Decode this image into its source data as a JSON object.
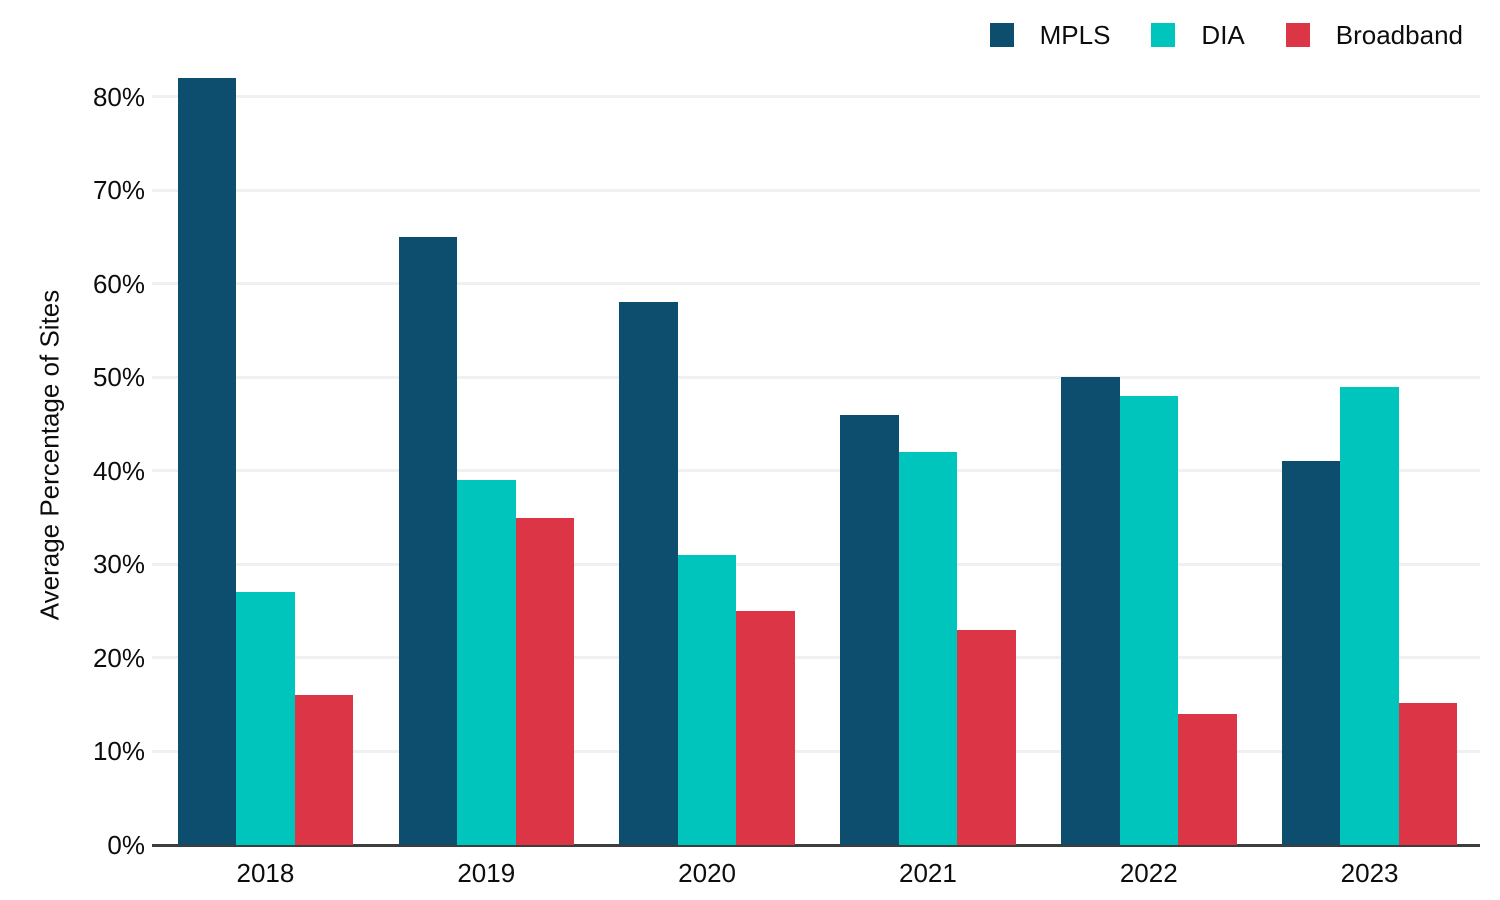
{
  "chart_data": {
    "type": "bar",
    "title": "",
    "categories": [
      "2018",
      "2019",
      "2020",
      "2021",
      "2022",
      "2023"
    ],
    "series": [
      {
        "name": "MPLS",
        "color": "#0d4d6d",
        "values": [
          82,
          65,
          58,
          46,
          50,
          41
        ]
      },
      {
        "name": "DIA",
        "color": "#00c5bc",
        "values": [
          27,
          39,
          31,
          42,
          48,
          49
        ]
      },
      {
        "name": "Broadband",
        "color": "#dc3545",
        "values": [
          16,
          35,
          25,
          23,
          14,
          15.2
        ]
      }
    ],
    "xlabel": "",
    "ylabel": "Average Percentage of Sites",
    "ylim": [
      0,
      85
    ],
    "yticks": [
      {
        "value": 0,
        "label": "0%"
      },
      {
        "value": 10,
        "label": "10%"
      },
      {
        "value": 20,
        "label": "20%"
      },
      {
        "value": 30,
        "label": "30%"
      },
      {
        "value": 40,
        "label": "40%"
      },
      {
        "value": 50,
        "label": "50%"
      },
      {
        "value": 60,
        "label": "60%"
      },
      {
        "value": 70,
        "label": "70%"
      },
      {
        "value": 80,
        "label": "80%"
      }
    ],
    "grid": "horizontal",
    "legend_position": "top-right",
    "colors": {
      "background": "#ffffff",
      "gridline": "#f0f0f0",
      "axis_line": "#3d3d3d",
      "text": "#0d0d0d"
    }
  }
}
